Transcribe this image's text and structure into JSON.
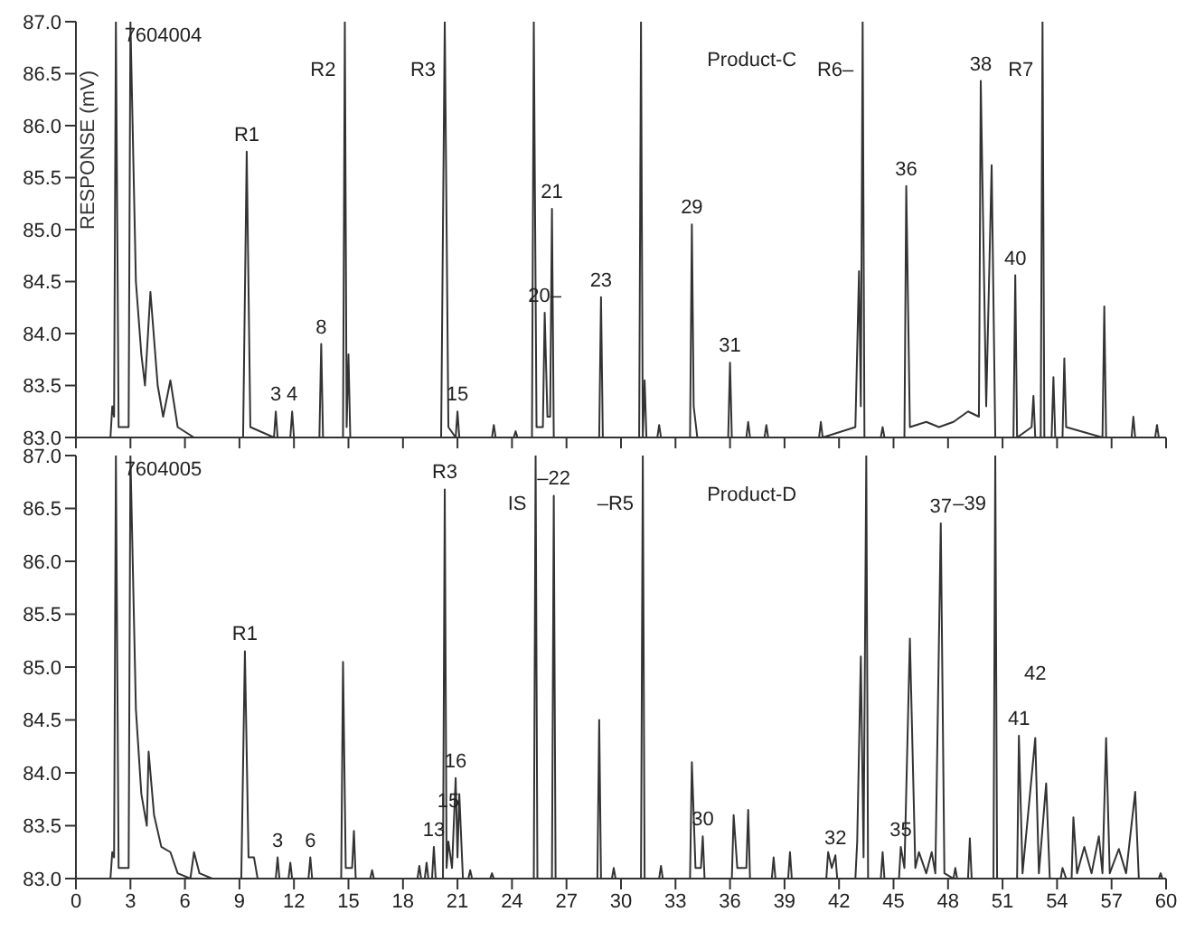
{
  "chart_data": [
    {
      "type": "line",
      "ylabel": "RESPONSE (mV)",
      "xlim": [
        0,
        60
      ],
      "ylim": [
        83.0,
        87.0
      ],
      "tick_labels": "y",
      "xticks": [
        0,
        3,
        6,
        9,
        12,
        15,
        18,
        21,
        24,
        27,
        30,
        33,
        36,
        39,
        42,
        45,
        48,
        51,
        54,
        57,
        60
      ],
      "yticks": [
        {
          "value": 83.0,
          "label": "83.0"
        },
        {
          "value": 83.5,
          "label": "83.5"
        },
        {
          "value": 84.0,
          "label": "84.0"
        },
        {
          "value": 84.5,
          "label": "84.5"
        },
        {
          "value": 85.0,
          "label": "85.0"
        },
        {
          "value": 85.5,
          "label": "85.5"
        },
        {
          "value": 86.0,
          "label": "86.0"
        },
        {
          "value": 86.5,
          "label": "86.5"
        },
        {
          "value": 87.0,
          "label": "87.0"
        }
      ],
      "series": [
        {
          "color": "#333333",
          "x": [
            0,
            1.9,
            2.0,
            2.1,
            2.2,
            2.35,
            2.9,
            3.0,
            3.3,
            3.6,
            3.8,
            4.1,
            4.5,
            4.8,
            5.2,
            5.6,
            6.5,
            9.2,
            9.4,
            9.6,
            10.9,
            11.0,
            11.1,
            11.8,
            11.9,
            12.0,
            13.4,
            13.5,
            13.6,
            14.7,
            14.8,
            14.9,
            15.0,
            15.1,
            20.1,
            20.3,
            20.5,
            20.9,
            21.0,
            21.1,
            22.9,
            23.0,
            23.1,
            24.1,
            24.2,
            24.3,
            25.1,
            25.2,
            25.35,
            25.7,
            25.8,
            25.95,
            26.1,
            26.2,
            26.3,
            28.8,
            28.9,
            29.0,
            31.0,
            31.1,
            31.2,
            31.3,
            31.4,
            32.0,
            32.1,
            32.2,
            33.8,
            33.9,
            34.0,
            34.2,
            35.9,
            36.0,
            36.1,
            36.9,
            37.0,
            37.1,
            37.9,
            38.0,
            38.1,
            40.9,
            41.0,
            41.1,
            42.9,
            43.1,
            43.2,
            43.3,
            43.4,
            44.3,
            44.4,
            44.5,
            45.6,
            45.7,
            45.9,
            46.8,
            47.5,
            48.3,
            49.1,
            49.7,
            49.8,
            50.1,
            50.4,
            50.6,
            51.6,
            51.7,
            51.8,
            52.6,
            52.7,
            52.8,
            53.1,
            53.2,
            53.3,
            53.7,
            53.8,
            53.9,
            54.3,
            54.4,
            54.5,
            56.5,
            56.6,
            56.7,
            58.1,
            58.2,
            58.3,
            59.4,
            59.5,
            59.6,
            60
          ],
          "values": [
            83.0,
            83.0,
            83.3,
            83.2,
            87.0,
            83.1,
            83.1,
            87.0,
            84.5,
            83.8,
            83.5,
            84.4,
            83.5,
            83.2,
            83.55,
            83.1,
            83.0,
            83.0,
            85.75,
            83.1,
            83.0,
            83.25,
            83.0,
            83.0,
            83.25,
            83.0,
            83.0,
            83.9,
            83.0,
            83.0,
            87.0,
            83.1,
            83.8,
            83.0,
            83.0,
            87.0,
            83.1,
            83.0,
            83.25,
            83.0,
            83.0,
            83.12,
            83.0,
            83.0,
            83.06,
            83.0,
            83.0,
            87.0,
            83.1,
            83.1,
            84.2,
            83.2,
            83.2,
            85.2,
            83.0,
            83.0,
            84.35,
            83.0,
            83.0,
            87.0,
            83.0,
            83.55,
            83.0,
            83.0,
            83.12,
            83.0,
            83.0,
            85.05,
            83.3,
            83.0,
            83.0,
            83.72,
            83.0,
            83.0,
            83.15,
            83.0,
            83.0,
            83.12,
            83.0,
            83.0,
            83.15,
            83.0,
            83.1,
            84.6,
            83.3,
            87.0,
            83.0,
            83.0,
            83.1,
            83.0,
            83.0,
            85.42,
            83.1,
            83.15,
            83.1,
            83.15,
            83.25,
            83.2,
            86.43,
            83.3,
            85.62,
            83.0,
            83.0,
            84.56,
            83.0,
            83.1,
            83.4,
            83.0,
            83.0,
            87.0,
            83.0,
            83.0,
            83.58,
            83.0,
            83.0,
            83.76,
            83.1,
            83.0,
            84.26,
            83.0,
            83.0,
            83.2,
            83.0,
            83.0,
            83.12,
            83.0,
            83.0
          ]
        }
      ],
      "annotations": [
        "7604004",
        "Product-C",
        {
          "text": "R1",
          "x": 9.4,
          "y": 85.75
        },
        {
          "text": "3",
          "x": 11.0,
          "y": 83.25
        },
        {
          "text": "4",
          "x": 11.9,
          "y": 83.25
        },
        {
          "text": "8",
          "x": 13.5,
          "y": 83.9
        },
        {
          "text": "R2",
          "x": 14.8,
          "y": 87.0
        },
        {
          "text": "R3",
          "x": 20.3,
          "y": 87.0
        },
        {
          "text": "15",
          "x": 21.0,
          "y": 83.25
        },
        {
          "text": "20–",
          "x": 25.8,
          "y": 84.2
        },
        {
          "text": "21",
          "x": 26.2,
          "y": 85.2
        },
        {
          "text": "23",
          "x": 28.9,
          "y": 84.35
        },
        {
          "text": "29",
          "x": 33.9,
          "y": 85.05
        },
        {
          "text": "31",
          "x": 36.0,
          "y": 83.72
        },
        {
          "text": "R6–",
          "x": 43.3,
          "y": 87.0
        },
        {
          "text": "36",
          "x": 45.7,
          "y": 85.42
        },
        {
          "text": "38",
          "x": 49.8,
          "y": 86.43
        },
        {
          "text": "40",
          "x": 51.7,
          "y": 84.56
        },
        {
          "text": "R7",
          "x": 53.2,
          "y": 87.0
        }
      ]
    },
    {
      "type": "line",
      "xlim": [
        0,
        60
      ],
      "ylim": [
        83.0,
        87.0
      ],
      "xticks": [
        0,
        3,
        6,
        9,
        12,
        15,
        18,
        21,
        24,
        27,
        30,
        33,
        36,
        39,
        42,
        45,
        48,
        51,
        54,
        57,
        60
      ],
      "yticks": [
        {
          "value": 83.0,
          "label": "83.0"
        },
        {
          "value": 83.5,
          "label": "83.5"
        },
        {
          "value": 84.0,
          "label": "84.0"
        },
        {
          "value": 84.5,
          "label": "84.5"
        },
        {
          "value": 85.0,
          "label": "85.0"
        },
        {
          "value": 85.5,
          "label": "85.5"
        },
        {
          "value": 86.0,
          "label": "86.0"
        },
        {
          "value": 86.5,
          "label": "86.5"
        },
        {
          "value": 87.0,
          "label": "87.0"
        }
      ],
      "series": [
        {
          "color": "#333333",
          "x": [
            0,
            1.9,
            2.0,
            2.1,
            2.2,
            2.35,
            2.9,
            3.0,
            3.3,
            3.6,
            3.9,
            4.0,
            4.3,
            4.7,
            5.2,
            5.6,
            6.3,
            6.5,
            6.8,
            7.5,
            9.1,
            9.3,
            9.5,
            9.8,
            10.0,
            11.0,
            11.1,
            11.2,
            11.7,
            11.8,
            11.9,
            12.8,
            12.9,
            13.0,
            14.6,
            14.7,
            14.85,
            15.2,
            15.3,
            15.4,
            16.2,
            16.3,
            16.4,
            18.8,
            18.9,
            19.0,
            19.2,
            19.3,
            19.4,
            19.6,
            19.7,
            19.8,
            20.2,
            20.3,
            20.4,
            20.5,
            20.7,
            20.9,
            21.0,
            21.1,
            21.3,
            21.6,
            21.7,
            21.8,
            22.8,
            22.9,
            23.0,
            25.2,
            25.3,
            25.4,
            26.2,
            26.3,
            26.4,
            28.7,
            28.8,
            28.9,
            29.5,
            29.6,
            29.7,
            31.1,
            31.2,
            31.3,
            32.1,
            32.2,
            32.3,
            33.8,
            33.9,
            34.1,
            34.4,
            34.5,
            34.6,
            36.1,
            36.2,
            36.4,
            36.9,
            37.0,
            37.1,
            38.3,
            38.4,
            38.5,
            39.2,
            39.3,
            39.4,
            41.3,
            41.4,
            41.6,
            41.8,
            41.9,
            42.9,
            43.0,
            43.2,
            43.35,
            43.5,
            43.6,
            44.3,
            44.4,
            44.5,
            45.3,
            45.4,
            45.6,
            45.9,
            46.2,
            46.4,
            46.8,
            47.1,
            47.3,
            47.6,
            47.8,
            48.3,
            48.4,
            48.5,
            49.1,
            49.2,
            49.3,
            50.5,
            50.6,
            50.7,
            51.8,
            51.9,
            52.1,
            52.8,
            53.0,
            53.4,
            53.6,
            54.2,
            54.3,
            54.5,
            54.8,
            54.9,
            55.1,
            55.5,
            55.9,
            56.3,
            56.5,
            56.7,
            56.9,
            57.4,
            57.8,
            58.3,
            58.5,
            59.6,
            59.7,
            59.8,
            60
          ],
          "values": [
            83.0,
            83.0,
            83.25,
            83.2,
            87.0,
            83.1,
            83.1,
            87.0,
            84.6,
            83.8,
            83.5,
            84.2,
            83.6,
            83.3,
            83.25,
            83.05,
            83.0,
            83.25,
            83.05,
            83.0,
            83.0,
            85.15,
            83.2,
            83.2,
            83.0,
            83.0,
            83.2,
            83.0,
            83.0,
            83.15,
            83.0,
            83.0,
            83.2,
            83.0,
            83.0,
            85.05,
            83.1,
            83.1,
            83.45,
            83.0,
            83.0,
            83.08,
            83.0,
            83.0,
            83.12,
            83.0,
            83.0,
            83.15,
            83.0,
            83.0,
            83.3,
            83.0,
            83.0,
            86.68,
            83.1,
            83.35,
            83.1,
            83.95,
            83.2,
            83.8,
            83.0,
            83.0,
            83.08,
            83.0,
            83.0,
            83.05,
            83.0,
            83.0,
            87.0,
            83.0,
            83.0,
            86.62,
            83.0,
            83.0,
            84.5,
            83.0,
            83.0,
            83.1,
            83.0,
            83.0,
            87.0,
            83.0,
            83.0,
            83.12,
            83.0,
            83.0,
            84.1,
            83.1,
            83.1,
            83.4,
            83.0,
            83.0,
            83.6,
            83.1,
            83.1,
            83.65,
            83.0,
            83.0,
            83.2,
            83.0,
            83.0,
            83.25,
            83.0,
            83.0,
            83.25,
            83.1,
            83.22,
            83.0,
            83.0,
            83.35,
            85.1,
            83.2,
            87.0,
            83.0,
            83.0,
            83.25,
            83.0,
            83.0,
            83.3,
            83.1,
            85.27,
            83.1,
            83.25,
            83.05,
            83.25,
            83.05,
            86.36,
            83.05,
            83.0,
            83.1,
            83.0,
            83.0,
            83.38,
            83.0,
            83.0,
            87.0,
            83.0,
            83.0,
            84.35,
            83.05,
            84.33,
            83.05,
            83.9,
            83.0,
            83.0,
            83.1,
            83.0,
            83.0,
            83.58,
            83.05,
            83.3,
            83.05,
            83.4,
            83.05,
            84.33,
            83.05,
            83.28,
            83.05,
            83.82,
            83.0,
            83.0,
            83.05,
            83.0,
            83.0
          ]
        }
      ],
      "annotations": [
        "7604005",
        "Product-D",
        {
          "text": "R1",
          "x": 9.3,
          "y": 85.15
        },
        {
          "text": "3",
          "x": 11.1,
          "y": 83.2
        },
        {
          "text": "6",
          "x": 12.9,
          "y": 83.2
        },
        {
          "text": "13",
          "x": 19.7,
          "y": 83.3
        },
        {
          "text": "R3",
          "x": 20.3,
          "y": 86.68
        },
        {
          "text": "15",
          "x": 20.5,
          "y": 83.35
        },
        {
          "text": "16",
          "x": 20.9,
          "y": 83.95
        },
        {
          "text": "IS",
          "x": 25.3,
          "y": 87.0
        },
        {
          "text": "–22",
          "x": 26.3,
          "y": 86.62
        },
        {
          "text": "–R5",
          "x": 31.2,
          "y": 87.0
        },
        {
          "text": "30",
          "x": 34.5,
          "y": 83.4
        },
        {
          "text": "32",
          "x": 41.8,
          "y": 83.22
        },
        {
          "text": "35",
          "x": 45.4,
          "y": 83.3
        },
        {
          "text": "37",
          "x": 47.6,
          "y": 86.36
        },
        {
          "text": "–39",
          "x": 50.6,
          "y": 87.0
        },
        {
          "text": "41",
          "x": 51.9,
          "y": 84.35
        },
        {
          "text": "42",
          "x": 52.8,
          "y": 84.33
        }
      ]
    }
  ]
}
